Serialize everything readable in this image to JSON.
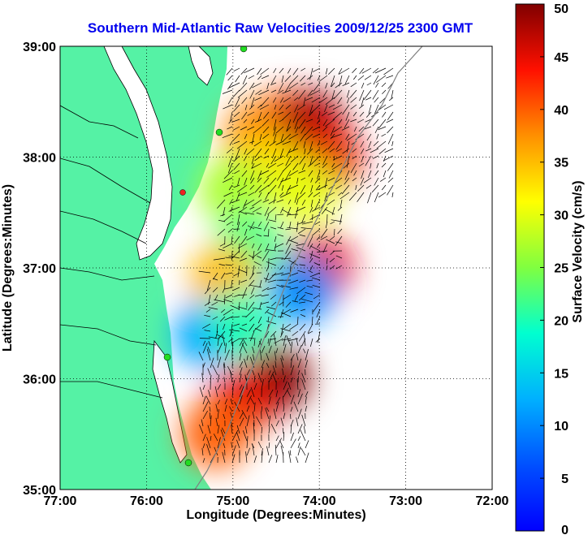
{
  "chart_data": {
    "type": "heatmap",
    "title": "Southern Mid-Atlantic Raw Velocities 2009/12/25 2300 GMT",
    "xlabel": "Longitude (Degrees:Minutes)",
    "ylabel": "Latitude (Degrees:Minutes)",
    "xlim": [
      -77,
      -72
    ],
    "ylim": [
      35,
      39
    ],
    "x_ticks": [
      {
        "value": -77,
        "label": "77:00"
      },
      {
        "value": -76,
        "label": "76:00"
      },
      {
        "value": -75,
        "label": "75:00"
      },
      {
        "value": -74,
        "label": "74:00"
      },
      {
        "value": -73,
        "label": "73:00"
      },
      {
        "value": -72,
        "label": "72:00"
      }
    ],
    "y_ticks": [
      {
        "value": 35,
        "label": "35:00"
      },
      {
        "value": 36,
        "label": "36:00"
      },
      {
        "value": 37,
        "label": "37:00"
      },
      {
        "value": 38,
        "label": "38:00"
      },
      {
        "value": 39,
        "label": "39:00"
      }
    ],
    "grid": true,
    "colorbar": {
      "label": "Surface Velocity (cm/s)",
      "range": [
        0,
        50
      ],
      "ticks": [
        0,
        5,
        10,
        15,
        20,
        25,
        30,
        35,
        40,
        45,
        50
      ],
      "colormap": "jet"
    },
    "land_color": "#55f2a5",
    "vector_color": "#000000",
    "coast_color": "#808080",
    "station_color": "#22dd22",
    "station_offline_color": "#ee2222",
    "velocity_cells": [
      {
        "lon": -74.4,
        "lat": 38.3,
        "v": 42
      },
      {
        "lon": -74.7,
        "lat": 38.2,
        "v": 38
      },
      {
        "lon": -74.1,
        "lat": 38.3,
        "v": 48
      },
      {
        "lon": -73.9,
        "lat": 38.0,
        "v": 45
      },
      {
        "lon": -74.6,
        "lat": 37.9,
        "v": 33
      },
      {
        "lon": -74.2,
        "lat": 37.7,
        "v": 30
      },
      {
        "lon": -75.0,
        "lat": 37.7,
        "v": 27
      },
      {
        "lon": -74.8,
        "lat": 37.2,
        "v": 22
      },
      {
        "lon": -74.0,
        "lat": 37.0,
        "v": 45
      },
      {
        "lon": -74.2,
        "lat": 36.8,
        "v": 10
      },
      {
        "lon": -75.1,
        "lat": 36.9,
        "v": 35
      },
      {
        "lon": -75.3,
        "lat": 36.4,
        "v": 12
      },
      {
        "lon": -74.9,
        "lat": 36.5,
        "v": 20
      },
      {
        "lon": -74.5,
        "lat": 36.0,
        "v": 50
      },
      {
        "lon": -74.9,
        "lat": 35.8,
        "v": 45
      },
      {
        "lon": -75.2,
        "lat": 35.5,
        "v": 40
      }
    ]
  }
}
